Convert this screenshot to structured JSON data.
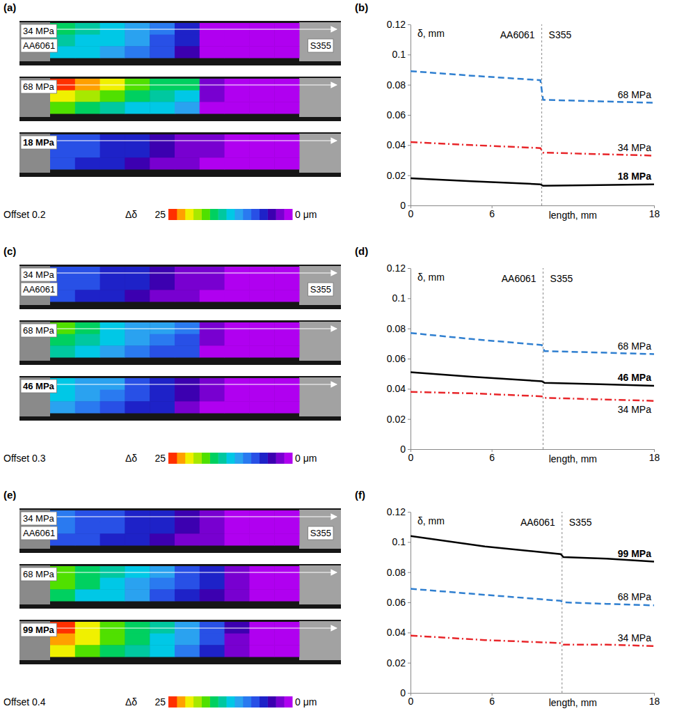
{
  "chart_data": [
    {
      "type": "heatmap",
      "panel": "(a)",
      "annotation": "Offset 0.2",
      "materials": [
        "AA6061",
        "S355"
      ],
      "colorbar": {
        "title": "Δδ",
        "range": [
          0,
          25
        ],
        "ticks": [
          25,
          {
            "value": 0,
            "label": "0 μm"
          }
        ]
      },
      "strips": [
        {
          "name": "34 MPa",
          "cells": [
            [
              15,
              14,
              13,
              11,
              9,
              5,
              1,
              0,
              0,
              0
            ],
            [
              14,
              13,
              12,
              10,
              8,
              5,
              1,
              0,
              0,
              0
            ],
            [
              13,
              12,
              11,
              9,
              7,
              4,
              1,
              0,
              0,
              0
            ]
          ]
        },
        {
          "name": "68 MPa",
          "cells": [
            [
              24,
              22,
              20,
              18,
              16,
              15,
              2,
              0,
              0,
              0
            ],
            [
              21,
              19,
              17,
              15,
              14,
              13,
              2,
              0,
              0,
              0
            ],
            [
              17,
              16,
              14,
              13,
              12,
              11,
              1,
              0,
              0,
              0
            ]
          ]
        },
        {
          "name": "18 MPa",
          "cells": [
            [
              8,
              7,
              6,
              5,
              4,
              3,
              2,
              1,
              0,
              0
            ],
            [
              8,
              7,
              6,
              5,
              4,
              3,
              2,
              1,
              0,
              0
            ],
            [
              7,
              6,
              5,
              4,
              3,
              2,
              1,
              1,
              0,
              0
            ]
          ]
        }
      ]
    },
    {
      "type": "line",
      "panel": "(b)",
      "x_label": "length, mm",
      "y_label": "δ, mm",
      "annotations": [
        "AA6061",
        "S355"
      ],
      "interface": 9.7,
      "x": [
        0,
        4.5,
        9.6,
        9.8,
        14,
        18
      ],
      "xlim": [
        0,
        18
      ],
      "xticks": [
        0,
        6,
        18
      ],
      "ylim": [
        0,
        0.12
      ],
      "yticks": [
        0,
        0.02,
        0.04,
        0.06,
        0.08,
        0.1,
        0.12
      ],
      "grid": false,
      "series": [
        {
          "name": "68 MPa",
          "color": "#2f7fd0",
          "line_style": "dashed",
          "values": [
            0.089,
            0.086,
            0.083,
            0.07,
            0.069,
            0.068
          ]
        },
        {
          "name": "34 MPa",
          "color": "#e8262a",
          "line_style": "dashdot",
          "values": [
            0.042,
            0.04,
            0.038,
            0.035,
            0.034,
            0.033
          ]
        },
        {
          "name": "18 MPa",
          "color": "#000000",
          "line_style": "solid",
          "values": [
            0.018,
            0.016,
            0.014,
            0.013,
            0.0135,
            0.014
          ]
        }
      ]
    },
    {
      "type": "heatmap",
      "panel": "(c)",
      "annotation": "Offset 0.3",
      "materials": [
        "AA6061",
        "S355"
      ],
      "colorbar": {
        "title": "Δδ",
        "range": [
          0,
          25
        ],
        "ticks": [
          25,
          {
            "value": 0,
            "label": "0 μm"
          }
        ]
      },
      "strips": [
        {
          "name": "34 MPa",
          "cells": [
            [
              8,
              7,
              6,
              5,
              4,
              3,
              2,
              1,
              0,
              0
            ],
            [
              8,
              7,
              6,
              5,
              4,
              3,
              2,
              1,
              0,
              0
            ],
            [
              7,
              6,
              5,
              4,
              3,
              2,
              1,
              1,
              0,
              0
            ]
          ]
        },
        {
          "name": "68 MPa",
          "cells": [
            [
              17,
              15,
              13,
              11,
              10,
              9,
              2,
              1,
              0,
              0
            ],
            [
              16,
              14,
              12,
              10,
              9,
              8,
              2,
              1,
              0,
              0
            ],
            [
              14,
              12,
              11,
              9,
              8,
              7,
              1,
              0,
              0,
              0
            ]
          ]
        },
        {
          "name": "46 MPa",
          "cells": [
            [
              13,
              11,
              10,
              8,
              6,
              4,
              2,
              1,
              0,
              0
            ],
            [
              12,
              10,
              9,
              7,
              6,
              4,
              2,
              1,
              0,
              0
            ],
            [
              11,
              9,
              8,
              6,
              5,
              3,
              1,
              0,
              0,
              0
            ]
          ]
        }
      ]
    },
    {
      "type": "line",
      "panel": "(d)",
      "x_label": "length, mm",
      "y_label": "δ, mm",
      "annotations": [
        "AA6061",
        "S355"
      ],
      "interface": 9.8,
      "x": [
        0,
        4.5,
        9.7,
        9.9,
        14,
        18
      ],
      "xlim": [
        0,
        18
      ],
      "xticks": [
        0,
        6,
        18
      ],
      "ylim": [
        0,
        0.12
      ],
      "yticks": [
        0,
        0.02,
        0.04,
        0.06,
        0.08,
        0.1,
        0.12
      ],
      "grid": false,
      "series": [
        {
          "name": "68 MPa",
          "color": "#2f7fd0",
          "line_style": "dashed",
          "values": [
            0.077,
            0.073,
            0.069,
            0.065,
            0.064,
            0.063
          ]
        },
        {
          "name": "46 MPa",
          "color": "#000000",
          "line_style": "solid",
          "values": [
            0.051,
            0.048,
            0.045,
            0.044,
            0.043,
            0.042
          ]
        },
        {
          "name": "34 MPa",
          "color": "#e8262a",
          "line_style": "dashdot",
          "values": [
            0.038,
            0.037,
            0.035,
            0.034,
            0.033,
            0.032
          ]
        }
      ]
    },
    {
      "type": "heatmap",
      "panel": "(e)",
      "annotation": "Offset 0.4",
      "materials": [
        "AA6061",
        "S355"
      ],
      "colorbar": {
        "title": "Δδ",
        "range": [
          0,
          25
        ],
        "ticks": [
          25,
          {
            "value": 0,
            "label": "0 μm"
          }
        ]
      },
      "strips": [
        {
          "name": "34 MPa",
          "cells": [
            [
              9,
              8,
              7,
              6,
              5,
              4,
              3,
              1,
              0,
              0
            ],
            [
              9,
              8,
              7,
              6,
              5,
              4,
              3,
              1,
              0,
              0
            ],
            [
              8,
              7,
              6,
              5,
              4,
              3,
              2,
              1,
              0,
              0
            ]
          ]
        },
        {
          "name": "68 MPa",
          "cells": [
            [
              18,
              16,
              14,
              12,
              10,
              8,
              6,
              3,
              1,
              0
            ],
            [
              17,
              15,
              13,
              11,
              9,
              7,
              5,
              3,
              1,
              0
            ],
            [
              15,
              13,
              12,
              10,
              8,
              6,
              4,
              2,
              1,
              0
            ]
          ]
        },
        {
          "name": "99 MPa",
          "cells": [
            [
              24,
              21,
              18,
              16,
              14,
              11,
              8,
              4,
              1,
              0
            ],
            [
              23,
              20,
              17,
              15,
              13,
              10,
              7,
              3,
              1,
              0
            ],
            [
              21,
              18,
              16,
              14,
              12,
              9,
              6,
              3,
              1,
              0
            ]
          ]
        }
      ]
    },
    {
      "type": "line",
      "panel": "(f)",
      "x_label": "length, mm",
      "y_label": "δ, mm",
      "annotations": [
        "AA6061",
        "S355"
      ],
      "interface": 11.2,
      "x": [
        0,
        5.5,
        11.1,
        11.3,
        14.5,
        18
      ],
      "xlim": [
        0,
        18
      ],
      "xticks": [
        0,
        6,
        18
      ],
      "ylim": [
        0,
        0.12
      ],
      "yticks": [
        0,
        0.02,
        0.04,
        0.06,
        0.08,
        0.1,
        0.12
      ],
      "grid": false,
      "series": [
        {
          "name": "99 MPa",
          "color": "#000000",
          "line_style": "solid",
          "values": [
            0.104,
            0.097,
            0.092,
            0.09,
            0.089,
            0.087
          ]
        },
        {
          "name": "68 MPa",
          "color": "#2f7fd0",
          "line_style": "dashed",
          "values": [
            0.069,
            0.065,
            0.061,
            0.06,
            0.059,
            0.058
          ]
        },
        {
          "name": "34 MPa",
          "color": "#e8262a",
          "line_style": "dashdot",
          "values": [
            0.038,
            0.035,
            0.033,
            0.032,
            0.032,
            0.031
          ]
        }
      ]
    }
  ]
}
